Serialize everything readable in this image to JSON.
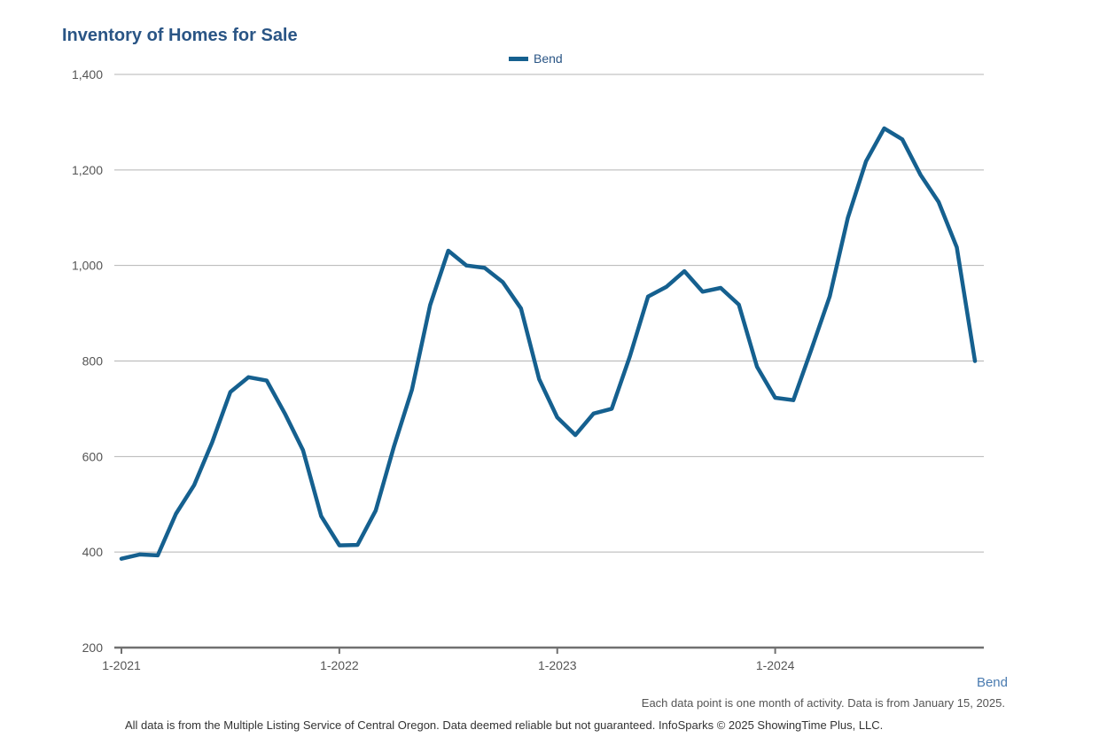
{
  "chart_data": {
    "type": "line",
    "title": "Inventory of Homes for Sale",
    "legend": {
      "entries": [
        "Bend"
      ],
      "placement": "top-center"
    },
    "x": [
      "1-2021",
      "2-2021",
      "3-2021",
      "4-2021",
      "5-2021",
      "6-2021",
      "7-2021",
      "8-2021",
      "9-2021",
      "10-2021",
      "11-2021",
      "12-2021",
      "1-2022",
      "2-2022",
      "3-2022",
      "4-2022",
      "5-2022",
      "6-2022",
      "7-2022",
      "8-2022",
      "9-2022",
      "10-2022",
      "11-2022",
      "12-2022",
      "1-2023",
      "2-2023",
      "3-2023",
      "4-2023",
      "5-2023",
      "6-2023",
      "7-2023",
      "8-2023",
      "9-2023",
      "10-2023",
      "11-2023",
      "12-2023",
      "1-2024",
      "2-2024",
      "3-2024",
      "4-2024",
      "5-2024",
      "6-2024",
      "7-2024",
      "8-2024",
      "9-2024",
      "10-2024",
      "11-2024",
      "12-2024"
    ],
    "series": [
      {
        "name": "Bend",
        "color": "#15608f",
        "values": [
          386,
          395,
          393,
          480,
          540,
          630,
          735,
          766,
          759,
          690,
          613,
          475,
          414,
          415,
          487,
          620,
          740,
          917,
          1031,
          1000,
          995,
          965,
          910,
          762,
          682,
          645,
          690,
          700,
          810,
          935,
          955,
          988,
          945,
          953,
          918,
          788,
          723,
          718,
          825,
          935,
          1100,
          1218,
          1287,
          1264,
          1190,
          1133,
          1038,
          800
        ]
      }
    ],
    "x_ticks": [
      "1-2021",
      "1-2022",
      "1-2023",
      "1-2024"
    ],
    "y_ticks": [
      "200",
      "400",
      "600",
      "800",
      "1,000",
      "1,200",
      "1,400"
    ],
    "ylim": [
      200,
      1400
    ],
    "grid": true
  },
  "market_label": "Bend",
  "note": "Each data point is one month of activity. Data is from January 15, 2025.",
  "footer": "All data is from the Multiple Listing Service of Central Oregon. Data deemed reliable but not guaranteed. InfoSparks © 2025 ShowingTime Plus, LLC."
}
